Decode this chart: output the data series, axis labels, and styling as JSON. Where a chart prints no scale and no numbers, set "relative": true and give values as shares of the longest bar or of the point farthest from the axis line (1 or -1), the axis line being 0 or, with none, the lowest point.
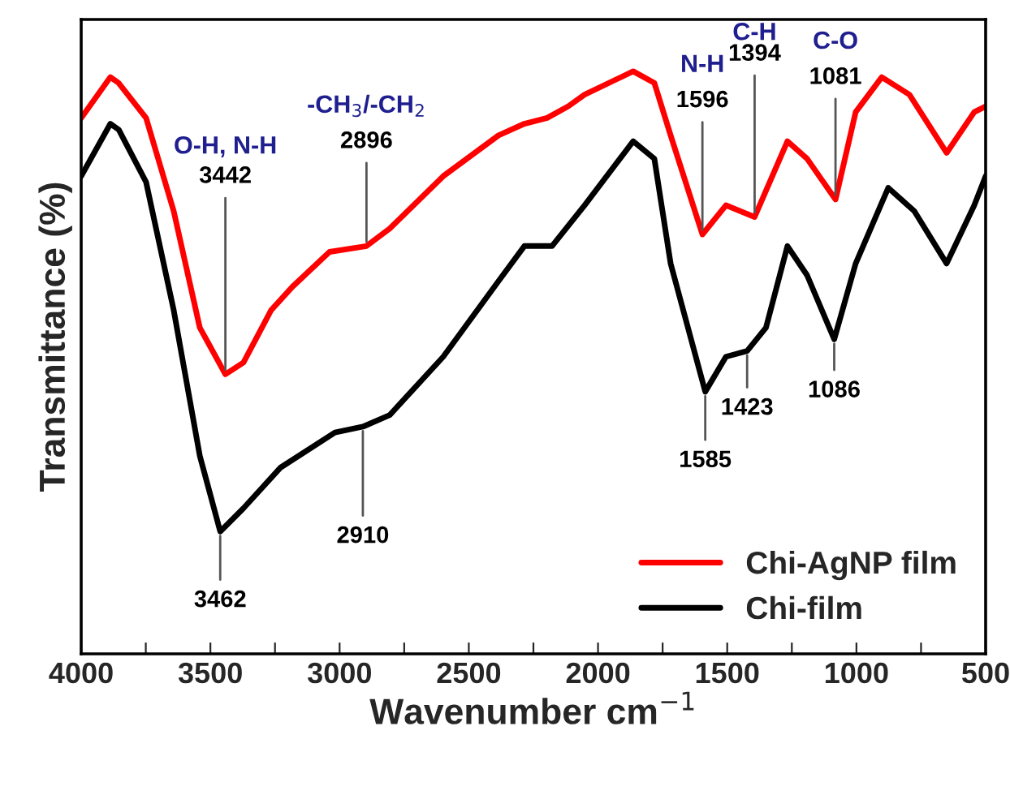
{
  "chart_data": {
    "type": "line",
    "relative": true,
    "xlabel": "Wavenumber cm$^{−1}$",
    "ylabel": "Transmittance (%)",
    "xlim": [
      4000,
      500
    ],
    "xticks": [
      4000,
      {
        "value": 3750,
        "label": null
      },
      3500,
      {
        "value": 3250,
        "label": null
      },
      3000,
      {
        "value": 2750,
        "label": null
      },
      2500,
      {
        "value": 2250,
        "label": null
      },
      2000,
      {
        "value": 1750,
        "label": null
      },
      1500,
      {
        "value": 1250,
        "label": null
      },
      1000,
      {
        "value": 750,
        "label": null
      },
      500
    ],
    "tick_labels": "x",
    "grid": false,
    "legend": "bottom right",
    "line_style": "solid",
    "marker": "none",
    "series": [
      {
        "name": "Chi-AgNP film",
        "color": "#ff0000",
        "x": [
          4000,
          3887,
          3855,
          3749,
          3642,
          3541,
          3442,
          3372,
          3265,
          3183,
          3039,
          2896,
          2806,
          2599,
          2385,
          2285,
          2197,
          2115,
          2052,
          1864,
          1782,
          1719,
          1596,
          1505,
          1394,
          1267,
          1191,
          1081,
          1003,
          902,
          795,
          651,
          544,
          500
        ],
        "values": [
          0.92,
          0.99,
          0.98,
          0.92,
          0.76,
          0.56,
          0.48,
          0.5,
          0.59,
          0.63,
          0.69,
          0.7,
          0.73,
          0.82,
          0.89,
          0.91,
          0.92,
          0.94,
          0.96,
          1.0,
          0.98,
          0.89,
          0.72,
          0.77,
          0.75,
          0.88,
          0.85,
          0.78,
          0.93,
          0.99,
          0.96,
          0.86,
          0.93,
          0.94
        ]
      },
      {
        "name": "Chi-film",
        "color": "#000000",
        "x": [
          4000,
          3887,
          3855,
          3749,
          3642,
          3541,
          3462,
          3372,
          3228,
          3018,
          2910,
          2806,
          2599,
          2385,
          2285,
          2178,
          2052,
          1864,
          1782,
          1719,
          1585,
          1505,
          1423,
          1350,
          1267,
          1191,
          1086,
          1003,
          877,
          776,
          651,
          544,
          500
        ],
        "values": [
          0.82,
          0.91,
          0.9,
          0.81,
          0.59,
          0.34,
          0.21,
          0.25,
          0.32,
          0.38,
          0.39,
          0.41,
          0.51,
          0.64,
          0.7,
          0.7,
          0.77,
          0.88,
          0.85,
          0.67,
          0.45,
          0.51,
          0.52,
          0.56,
          0.7,
          0.65,
          0.54,
          0.67,
          0.8,
          0.76,
          0.67,
          0.77,
          0.82
        ]
      }
    ],
    "annotations": [
      "O-H, N-H",
      {
        "text": "3442",
        "x": 3442,
        "y": 0.48
      },
      "-CH$_{3}$/-CH$_{2}$",
      {
        "text": "2896",
        "x": 2896,
        "y": 0.7
      },
      "N-H",
      {
        "text": "1596",
        "x": 1596,
        "y": 0.72
      },
      "C-H",
      {
        "text": "1394",
        "x": 1394,
        "y": 0.75
      },
      "C-O",
      {
        "text": "1081",
        "x": 1081,
        "y": 0.78
      },
      {
        "text": "3462",
        "x": 3462,
        "y": 0.21
      },
      {
        "text": "2910",
        "x": 2910,
        "y": 0.39
      },
      {
        "text": "1585",
        "x": 1585,
        "y": 0.45
      },
      {
        "text": "1423",
        "x": 1423,
        "y": 0.52
      },
      {
        "text": "1086",
        "x": 1086,
        "y": 0.54
      }
    ]
  }
}
